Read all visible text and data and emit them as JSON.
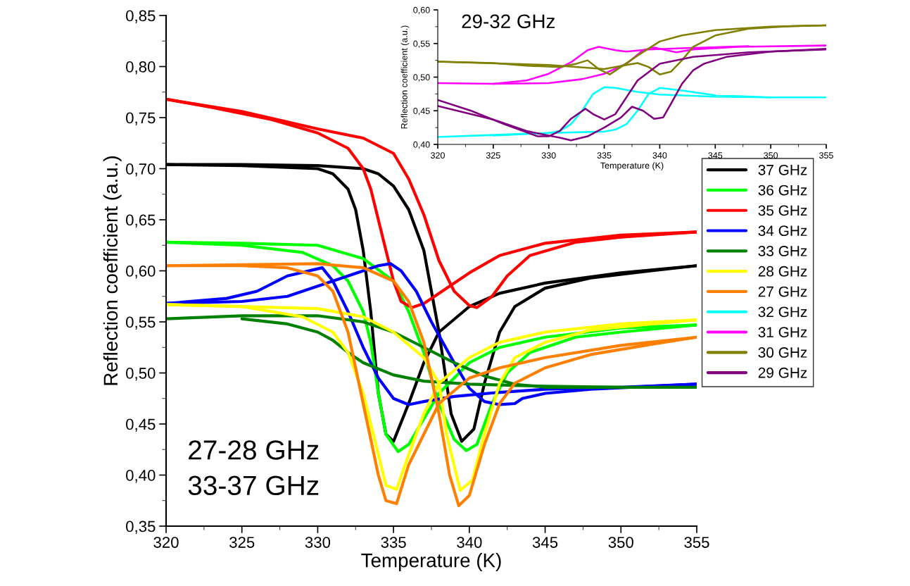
{
  "chart_data": [
    {
      "type": "line",
      "xlabel": "Temperature (K)",
      "ylabel": "Reflection coefficient (a.u.)",
      "xlim": [
        320,
        355
      ],
      "ylim": [
        0.35,
        0.85
      ],
      "xticks": [
        320,
        325,
        330,
        335,
        340,
        345,
        350,
        355
      ],
      "yticks": [
        {
          "value": 0.35,
          "label": "0,35"
        },
        {
          "value": 0.4,
          "label": "0,40"
        },
        {
          "value": 0.45,
          "label": "0,45"
        },
        {
          "value": 0.5,
          "label": "0,50"
        },
        {
          "value": 0.55,
          "label": "0,55"
        },
        {
          "value": 0.6,
          "label": "0,60"
        },
        {
          "value": 0.65,
          "label": "0,65"
        },
        {
          "value": 0.7,
          "label": "0,70"
        },
        {
          "value": 0.75,
          "label": "0,75"
        },
        {
          "value": 0.8,
          "label": "0,80"
        },
        {
          "value": 0.85,
          "label": "0,85"
        }
      ],
      "grid": false,
      "legend": "right",
      "marker": "none",
      "line_style": "solid",
      "annotations": [
        "27-28 GHz\n33-37 GHz"
      ],
      "series": [
        {
          "name": "37 GHz",
          "color": "#000000",
          "x": [
            320,
            325,
            330,
            333,
            334,
            335,
            336,
            337,
            338,
            338.8,
            339.5,
            340.3,
            341,
            342,
            343,
            345,
            348,
            352,
            355
          ],
          "values": [
            0.704,
            0.704,
            0.703,
            0.7,
            0.695,
            0.683,
            0.66,
            0.62,
            0.54,
            0.46,
            0.433,
            0.445,
            0.49,
            0.54,
            0.565,
            0.583,
            0.593,
            0.6,
            0.605
          ]
        },
        {
          "color": "#000000",
          "x": [
            320,
            325,
            330,
            331,
            332,
            332.5,
            333,
            333.5,
            334,
            334.5,
            335,
            336,
            337,
            338,
            340,
            342,
            345,
            350,
            355
          ],
          "values": [
            0.704,
            0.703,
            0.7,
            0.695,
            0.68,
            0.66,
            0.62,
            0.56,
            0.48,
            0.44,
            0.433,
            0.47,
            0.51,
            0.54,
            0.565,
            0.578,
            0.588,
            0.598,
            0.605
          ]
        },
        {
          "name": "36 GHz",
          "color": "#00ff00",
          "x": [
            320,
            325,
            330,
            333,
            335,
            336,
            337,
            338,
            339,
            339.8,
            340.5,
            341.5,
            342.5,
            344,
            347,
            350,
            355
          ],
          "values": [
            0.628,
            0.627,
            0.625,
            0.612,
            0.59,
            0.56,
            0.52,
            0.47,
            0.435,
            0.424,
            0.43,
            0.47,
            0.5,
            0.52,
            0.535,
            0.54,
            0.547
          ]
        },
        {
          "color": "#00ff00",
          "x": [
            320,
            325,
            329,
            331,
            332,
            333,
            333.5,
            334,
            334.5,
            335.3,
            336,
            337,
            338,
            340,
            342,
            345,
            350,
            355
          ],
          "values": [
            0.628,
            0.625,
            0.618,
            0.605,
            0.59,
            0.56,
            0.53,
            0.48,
            0.44,
            0.423,
            0.43,
            0.455,
            0.48,
            0.51,
            0.525,
            0.535,
            0.544,
            0.547
          ]
        },
        {
          "name": "35 GHz",
          "color": "#ff0000",
          "x": [
            320,
            325,
            330,
            333,
            335,
            336,
            337,
            338,
            339,
            340,
            340.5,
            341.5,
            342.5,
            344,
            347,
            350,
            355
          ],
          "values": [
            0.768,
            0.756,
            0.739,
            0.73,
            0.715,
            0.69,
            0.655,
            0.61,
            0.58,
            0.566,
            0.564,
            0.575,
            0.595,
            0.615,
            0.628,
            0.633,
            0.638
          ]
        },
        {
          "color": "#ff0000",
          "x": [
            320,
            323,
            327,
            330,
            332,
            333,
            333.5,
            334,
            334.5,
            335,
            335.5,
            336.2,
            337,
            338,
            340,
            342,
            345,
            350,
            355
          ],
          "values": [
            0.768,
            0.76,
            0.748,
            0.735,
            0.72,
            0.7,
            0.68,
            0.65,
            0.62,
            0.59,
            0.57,
            0.564,
            0.568,
            0.578,
            0.598,
            0.615,
            0.627,
            0.635,
            0.638
          ]
        },
        {
          "name": "34 GHz",
          "color": "#0000ff",
          "x": [
            320,
            325,
            328,
            330,
            332,
            333,
            334,
            334.8,
            335.5,
            336.5,
            337.5,
            339,
            340,
            341,
            342,
            343,
            343.5,
            345,
            348,
            352,
            355
          ],
          "values": [
            0.568,
            0.57,
            0.575,
            0.585,
            0.595,
            0.6,
            0.605,
            0.607,
            0.6,
            0.58,
            0.55,
            0.51,
            0.485,
            0.472,
            0.469,
            0.47,
            0.475,
            0.48,
            0.484,
            0.487,
            0.489
          ]
        },
        {
          "color": "#0000ff",
          "x": [
            320,
            324,
            326,
            328,
            330.3,
            331,
            332,
            333,
            334,
            335,
            336,
            337,
            339,
            342,
            345,
            350,
            355
          ],
          "values": [
            0.568,
            0.573,
            0.58,
            0.595,
            0.603,
            0.59,
            0.56,
            0.525,
            0.495,
            0.475,
            0.469,
            0.472,
            0.477,
            0.481,
            0.484,
            0.486,
            0.489
          ]
        },
        {
          "name": "33 GHz",
          "color": "#008000",
          "x": [
            320,
            325,
            330,
            333,
            335,
            337,
            339,
            341,
            343,
            345,
            350,
            355
          ],
          "values": [
            0.553,
            0.556,
            0.556,
            0.55,
            0.54,
            0.525,
            0.51,
            0.497,
            0.489,
            0.486,
            0.486,
            0.486
          ]
        },
        {
          "color": "#008000",
          "x": [
            325,
            328,
            330,
            331,
            332,
            333,
            335,
            337,
            340,
            345,
            350
          ],
          "values": [
            0.553,
            0.548,
            0.54,
            0.532,
            0.52,
            0.51,
            0.498,
            0.492,
            0.489,
            0.487,
            0.486
          ]
        },
        {
          "name": "28 GHz",
          "color": "#ffff00",
          "x": [
            320,
            330,
            333,
            335,
            337,
            338,
            338.5,
            339.4,
            340.2,
            341,
            342,
            343,
            345,
            348,
            352,
            355
          ],
          "values": [
            0.567,
            0.563,
            0.555,
            0.54,
            0.515,
            0.49,
            0.44,
            0.385,
            0.395,
            0.44,
            0.49,
            0.515,
            0.53,
            0.542,
            0.548,
            0.552
          ]
        },
        {
          "color": "#ffff00",
          "x": [
            320,
            325,
            329,
            331,
            332,
            333,
            334,
            334.5,
            335.2,
            336,
            337,
            338,
            340,
            342,
            345,
            350,
            355
          ],
          "values": [
            0.567,
            0.565,
            0.555,
            0.54,
            0.52,
            0.48,
            0.42,
            0.39,
            0.386,
            0.42,
            0.46,
            0.49,
            0.515,
            0.53,
            0.54,
            0.548,
            0.552
          ]
        },
        {
          "name": "27 GHz",
          "color": "#ff8000",
          "x": [
            320,
            330,
            333,
            335,
            336,
            337,
            338,
            338.7,
            339.3,
            340,
            341,
            342,
            343,
            345,
            348,
            352,
            355
          ],
          "values": [
            0.605,
            0.607,
            0.603,
            0.59,
            0.57,
            0.53,
            0.46,
            0.4,
            0.37,
            0.38,
            0.43,
            0.47,
            0.49,
            0.505,
            0.518,
            0.528,
            0.535
          ]
        },
        {
          "color": "#ff8000",
          "x": [
            320,
            325,
            328,
            330,
            331,
            332,
            333,
            334,
            334.5,
            335.2,
            336,
            337,
            338,
            340,
            342,
            345,
            350,
            355
          ],
          "values": [
            0.605,
            0.605,
            0.603,
            0.595,
            0.58,
            0.54,
            0.47,
            0.4,
            0.375,
            0.372,
            0.41,
            0.44,
            0.47,
            0.495,
            0.505,
            0.515,
            0.527,
            0.535
          ]
        }
      ]
    },
    {
      "type": "line",
      "xlabel": "Temperature (K)",
      "ylabel": "Reflection coefficient (a.u.)",
      "xlim": [
        320,
        355
      ],
      "ylim": [
        0.4,
        0.6
      ],
      "xticks": [
        320,
        325,
        330,
        335,
        340,
        345,
        350,
        355
      ],
      "yticks": [
        {
          "value": 0.4,
          "label": "0,40"
        },
        {
          "value": 0.45,
          "label": "0,45"
        },
        {
          "value": 0.5,
          "label": "0,50"
        },
        {
          "value": 0.55,
          "label": "0,55"
        },
        {
          "value": 0.6,
          "label": "0,60"
        }
      ],
      "grid": false,
      "legend": "right",
      "marker": "none",
      "line_style": "solid",
      "annotations": [
        "29-32 GHz"
      ],
      "series": [
        {
          "name": "32 GHz",
          "color": "#00ffff",
          "x": [
            320,
            325,
            330,
            335,
            336,
            337,
            338,
            339,
            340,
            342,
            345,
            350,
            355
          ],
          "values": [
            0.411,
            0.414,
            0.417,
            0.419,
            0.422,
            0.43,
            0.45,
            0.475,
            0.484,
            0.48,
            0.473,
            0.47,
            0.47
          ]
        },
        {
          "color": "#00ffff",
          "x": [
            325,
            330,
            331,
            332,
            333,
            334,
            335,
            336,
            338,
            340,
            345,
            350
          ],
          "values": [
            0.413,
            0.417,
            0.42,
            0.43,
            0.45,
            0.475,
            0.485,
            0.484,
            0.478,
            0.474,
            0.471,
            0.47
          ]
        },
        {
          "name": "31 GHz",
          "color": "#ff00ff",
          "x": [
            320,
            325,
            330,
            333,
            335,
            337,
            338.5,
            339.5,
            341.5,
            343,
            347,
            355
          ],
          "values": [
            0.491,
            0.49,
            0.491,
            0.497,
            0.505,
            0.52,
            0.54,
            0.544,
            0.537,
            0.541,
            0.545,
            0.547
          ]
        },
        {
          "color": "#ff00ff",
          "x": [
            325,
            328,
            330,
            332,
            333.5,
            334.5,
            336,
            337,
            339,
            342,
            348
          ],
          "values": [
            0.49,
            0.495,
            0.505,
            0.522,
            0.54,
            0.545,
            0.54,
            0.538,
            0.541,
            0.543,
            0.546
          ]
        },
        {
          "name": "30 GHz",
          "color": "#808000",
          "x": [
            320,
            330,
            335,
            337,
            338,
            339,
            340,
            341,
            342,
            343,
            345,
            348,
            352,
            355
          ],
          "values": [
            0.523,
            0.518,
            0.512,
            0.518,
            0.521,
            0.515,
            0.504,
            0.508,
            0.525,
            0.545,
            0.562,
            0.572,
            0.576,
            0.577
          ]
        },
        {
          "color": "#808000",
          "x": [
            320,
            325,
            328,
            331,
            332.5,
            333.5,
            334.5,
            335.5,
            336.5,
            338,
            340,
            342,
            345,
            350,
            355
          ],
          "values": [
            0.523,
            0.521,
            0.517,
            0.515,
            0.52,
            0.525,
            0.512,
            0.504,
            0.515,
            0.532,
            0.553,
            0.562,
            0.57,
            0.575,
            0.577
          ]
        },
        {
          "name": "29 GHz",
          "color": "#800080",
          "x": [
            320,
            325,
            328,
            330,
            331,
            332,
            333.5,
            335,
            336.5,
            337.5,
            338.5,
            339.5,
            340.3,
            341,
            342,
            343,
            344,
            346,
            350,
            355
          ],
          "values": [
            0.457,
            0.437,
            0.42,
            0.413,
            0.41,
            0.406,
            0.412,
            0.425,
            0.44,
            0.456,
            0.45,
            0.438,
            0.44,
            0.46,
            0.49,
            0.51,
            0.52,
            0.53,
            0.538,
            0.542
          ]
        },
        {
          "color": "#800080",
          "x": [
            320,
            323,
            326,
            329,
            330,
            331,
            332,
            333.3,
            334,
            335,
            336,
            337,
            338,
            340,
            343,
            348,
            355
          ],
          "values": [
            0.466,
            0.45,
            0.43,
            0.412,
            0.412,
            0.42,
            0.438,
            0.453,
            0.445,
            0.437,
            0.445,
            0.47,
            0.495,
            0.52,
            0.53,
            0.537,
            0.541
          ]
        }
      ]
    }
  ]
}
